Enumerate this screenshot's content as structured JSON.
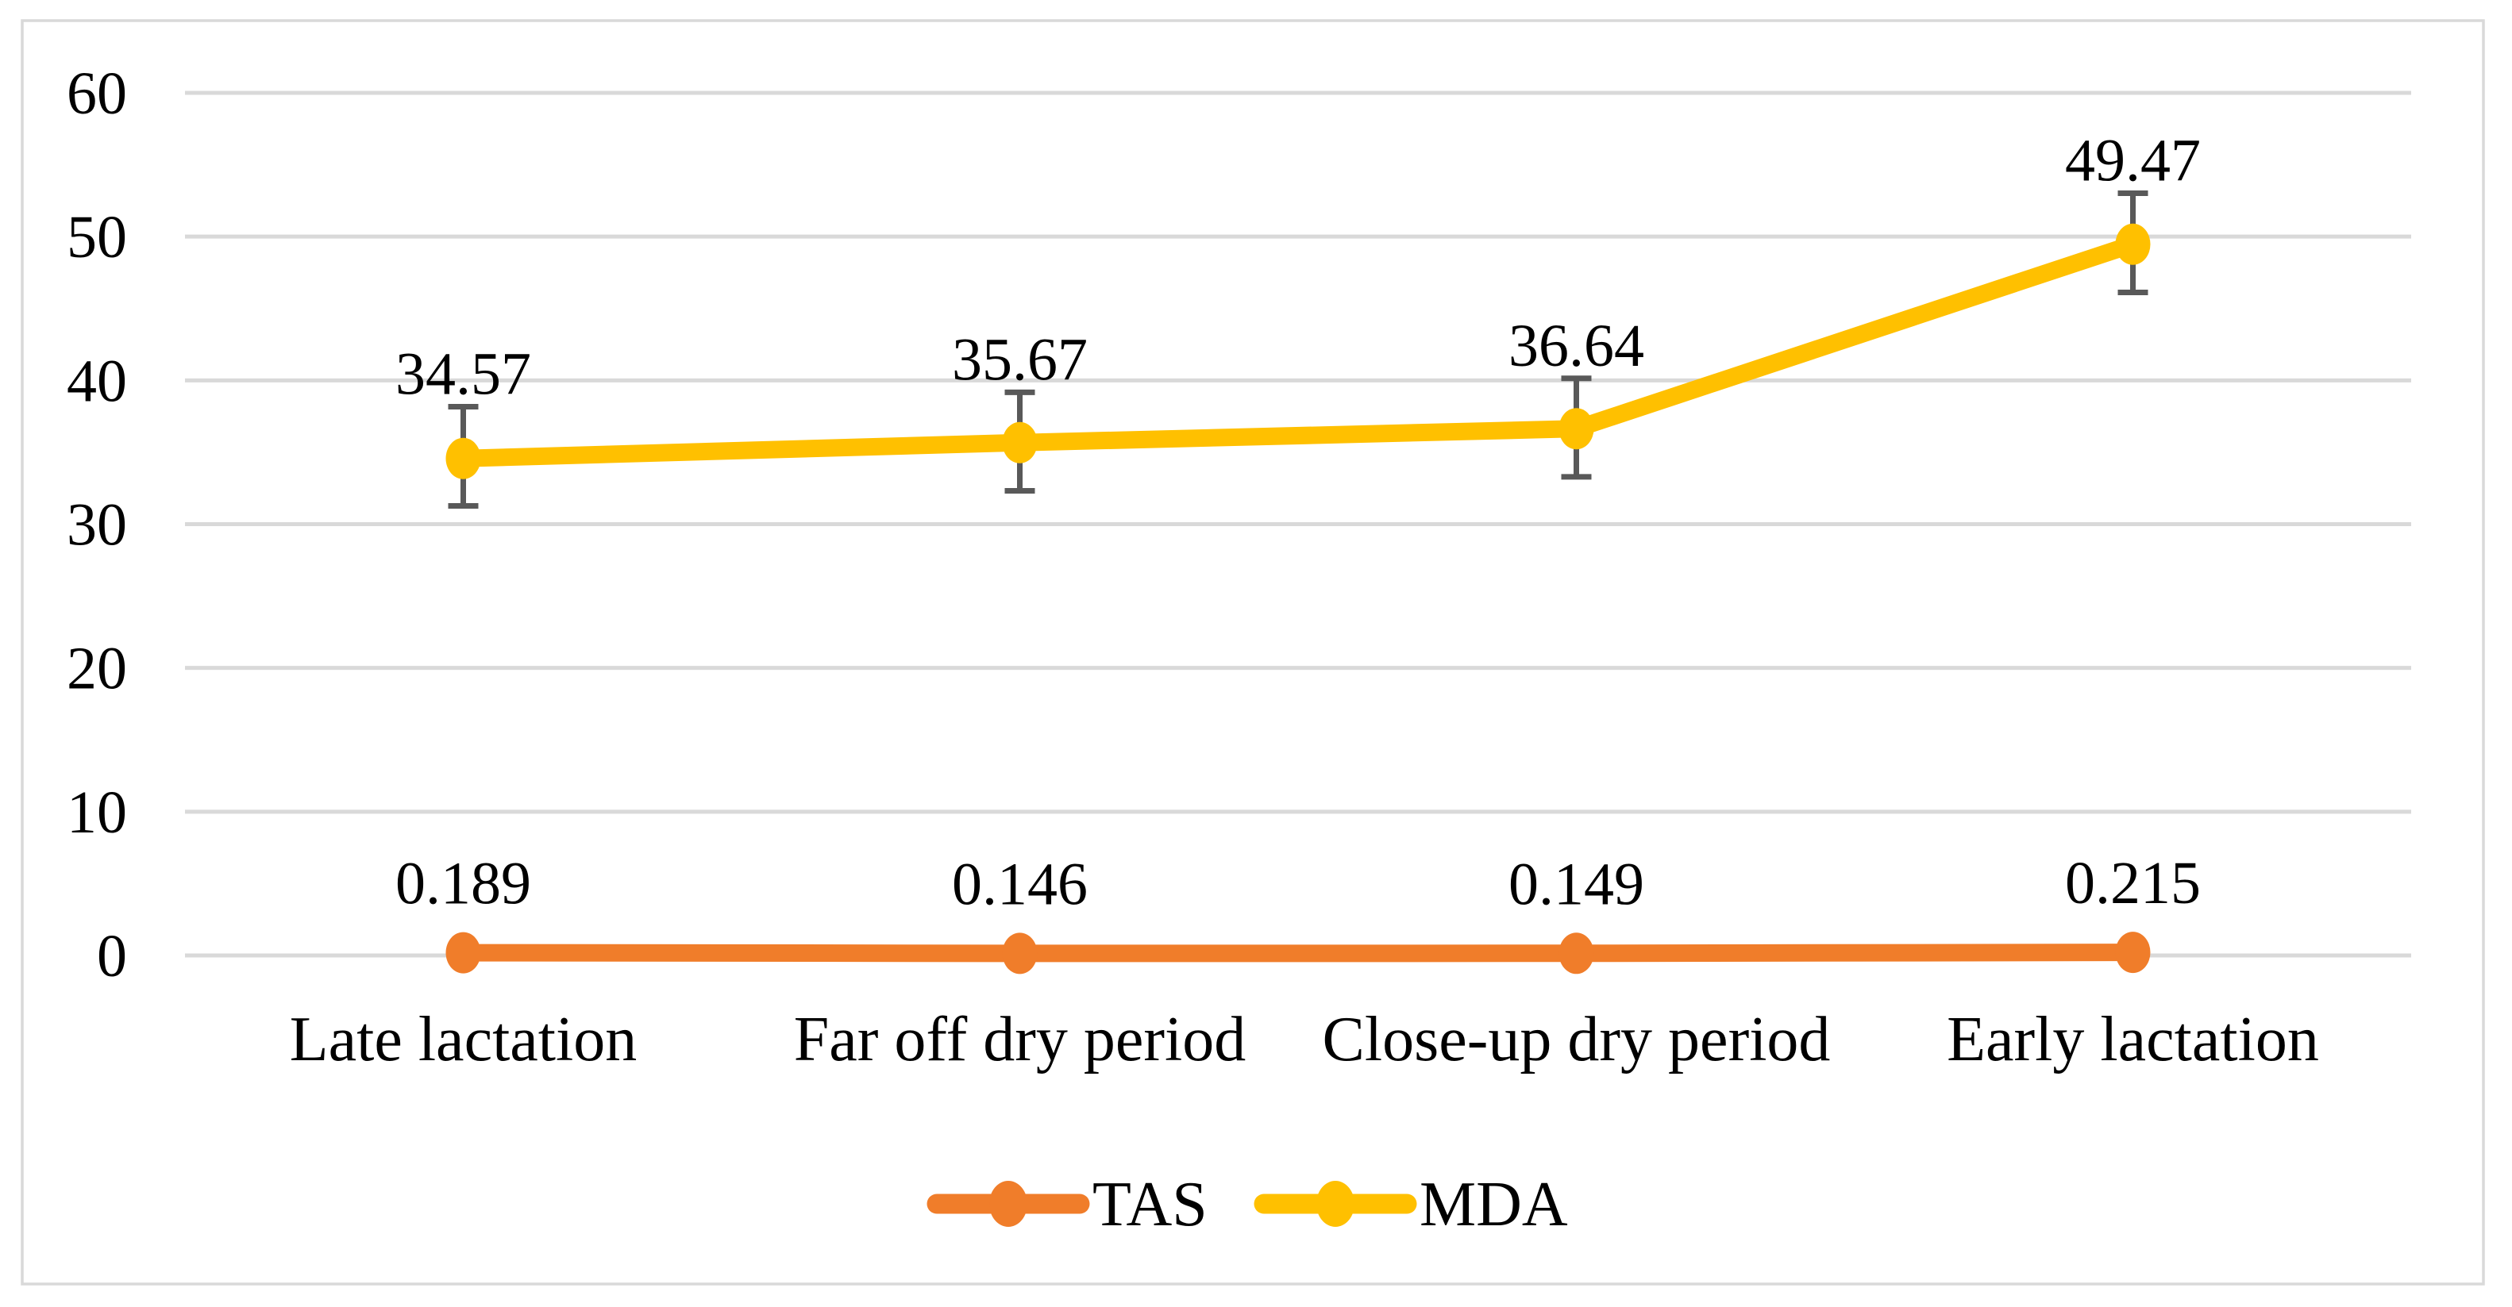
{
  "figure": {
    "background": "#ffffff",
    "frame_color": "#d9d9d9",
    "gridline_color": "#d9d9d9",
    "text_color": "#000000"
  },
  "chart_data": {
    "type": "line",
    "title": "",
    "xlabel": "",
    "ylabel": "",
    "categories": [
      "Late lactation",
      "Far off dry period",
      "Close-up dry period",
      "Early lactation"
    ],
    "ylim": [
      0,
      60
    ],
    "yticks": [
      0,
      10,
      20,
      30,
      40,
      50,
      60
    ],
    "ytick_labels": [
      "0",
      "10",
      "20",
      "30",
      "40",
      "50",
      "60"
    ],
    "grid": "horizontal",
    "legend_position": "bottom",
    "error_bar_color": "#595959",
    "series": [
      {
        "name": "TAS",
        "color": "#f07d2a",
        "values": [
          0.189,
          0.146,
          0.149,
          0.215
        ],
        "labels": [
          "0.189",
          "0.146",
          "0.149",
          "0.215"
        ],
        "error_plus": null,
        "error_minus": null
      },
      {
        "name": "MDA",
        "color": "#ffc000",
        "values": [
          34.57,
          35.67,
          36.64,
          49.47
        ],
        "labels": [
          "34.57",
          "35.67",
          "36.64",
          "49.47"
        ],
        "error_plus": [
          3.6,
          3.5,
          3.5,
          3.55
        ],
        "error_minus": [
          3.3,
          3.35,
          3.35,
          3.35
        ]
      }
    ]
  }
}
